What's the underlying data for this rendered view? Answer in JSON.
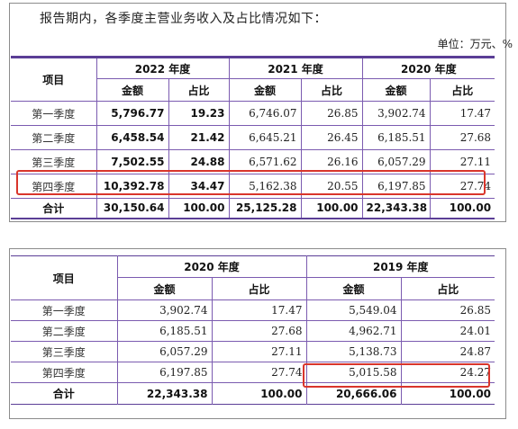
{
  "top": {
    "intro": "报告期内，各季度主营业务收入及占比情况如下：",
    "unit": "单位：万元、%",
    "headers": {
      "item": "项目",
      "years": [
        "2022 年度",
        "2021 年度",
        "2020 年度"
      ],
      "amount": "金额",
      "share": "占比"
    },
    "rows": [
      {
        "label": "第一季度",
        "y2022_amount": "5,796.77",
        "y2022_share": "19.23",
        "y2021_amount": "6,746.07",
        "y2021_share": "26.85",
        "y2020_amount": "3,902.74",
        "y2020_share": "17.47"
      },
      {
        "label": "第二季度",
        "y2022_amount": "6,458.54",
        "y2022_share": "21.42",
        "y2021_amount": "6,645.21",
        "y2021_share": "26.45",
        "y2020_amount": "6,185.51",
        "y2020_share": "27.68"
      },
      {
        "label": "第三季度",
        "y2022_amount": "7,502.55",
        "y2022_share": "24.88",
        "y2021_amount": "6,571.62",
        "y2021_share": "26.16",
        "y2020_amount": "6,057.29",
        "y2020_share": "27.11"
      },
      {
        "label": "第四季度",
        "y2022_amount": "10,392.78",
        "y2022_share": "34.47",
        "y2021_amount": "5,162.38",
        "y2021_share": "20.55",
        "y2020_amount": "6,197.85",
        "y2020_share": "27.74"
      }
    ],
    "total": {
      "label": "合计",
      "y2022_amount": "30,150.64",
      "y2022_share": "100.00",
      "y2021_amount": "25,125.28",
      "y2021_share": "100.00",
      "y2020_amount": "22,343.38",
      "y2020_share": "100.00"
    }
  },
  "bottom": {
    "headers": {
      "item": "项目",
      "years": [
        "2020 年度",
        "2019 年度"
      ],
      "amount": "金额",
      "share": "占比"
    },
    "rows": [
      {
        "label": "第一季度",
        "y2020_amount": "3,902.74",
        "y2020_share": "17.47",
        "y2019_amount": "5,549.04",
        "y2019_share": "26.85"
      },
      {
        "label": "第二季度",
        "y2020_amount": "6,185.51",
        "y2020_share": "27.68",
        "y2019_amount": "4,962.71",
        "y2019_share": "24.01"
      },
      {
        "label": "第三季度",
        "y2020_amount": "6,057.29",
        "y2020_share": "27.11",
        "y2019_amount": "5,138.73",
        "y2019_share": "24.87"
      },
      {
        "label": "第四季度",
        "y2020_amount": "6,197.85",
        "y2020_share": "27.74",
        "y2019_amount": "5,015.58",
        "y2019_share": "24.27"
      }
    ],
    "total": {
      "label": "合计",
      "y2020_amount": "22,343.38",
      "y2020_share": "100.00",
      "y2019_amount": "20,666.06",
      "y2019_share": "100.00"
    }
  },
  "colors": {
    "rule": "#5b3e96",
    "grid": "#7b5bb0",
    "highlight": "#d9352b"
  }
}
